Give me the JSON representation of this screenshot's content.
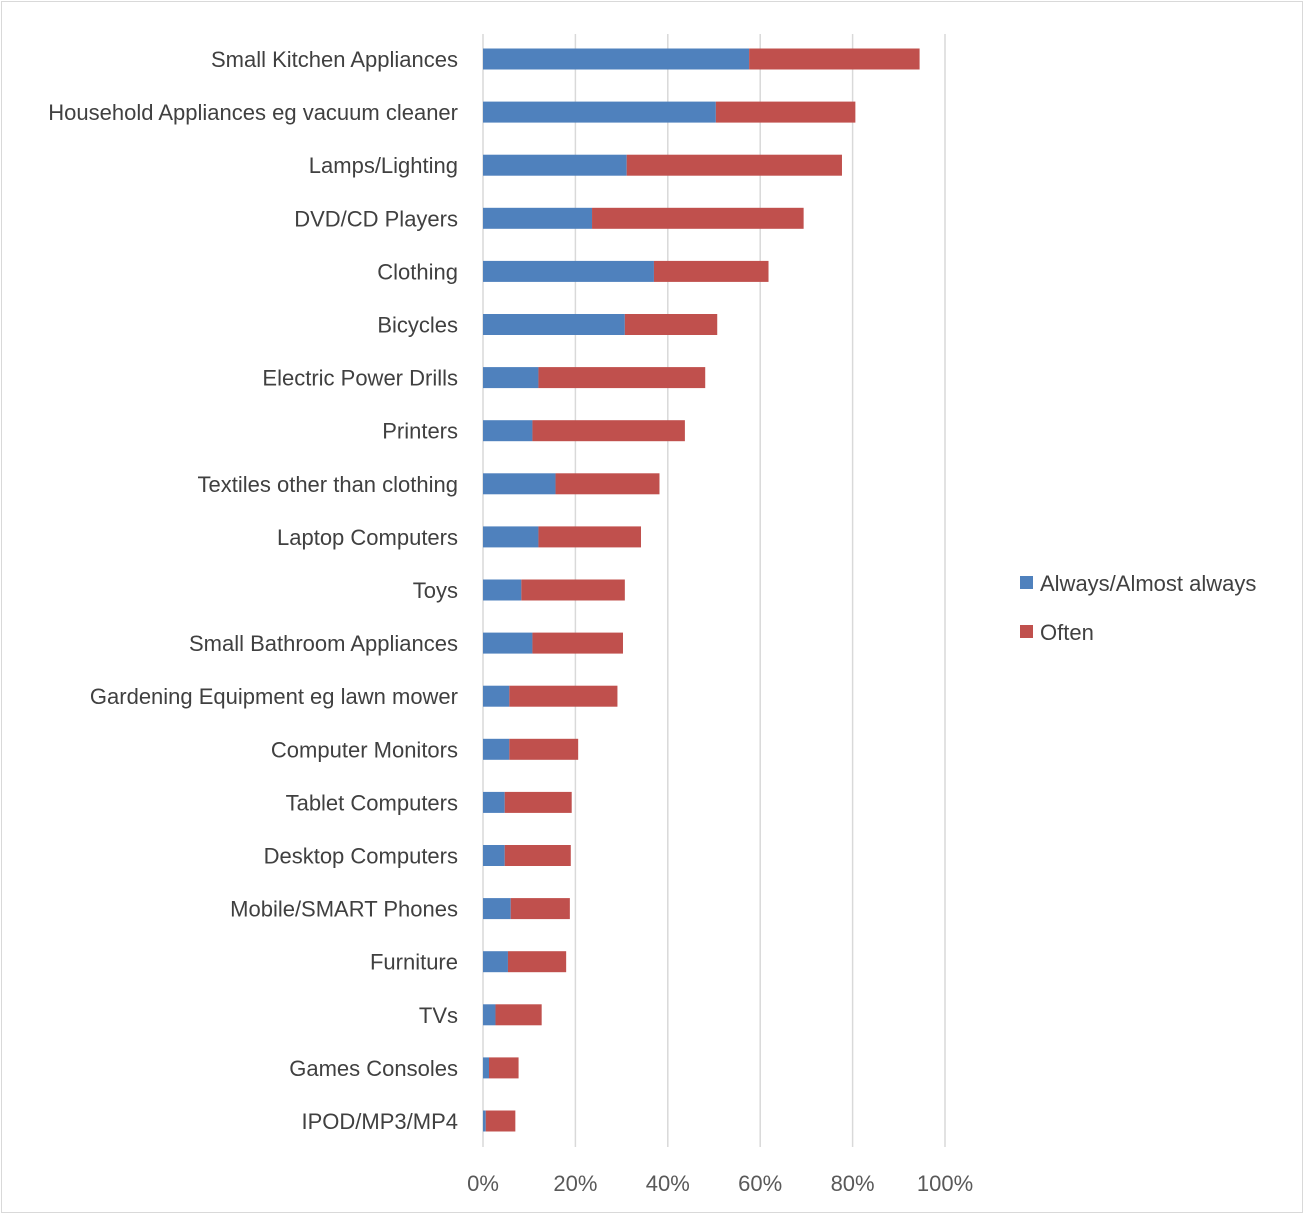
{
  "chart_data": {
    "type": "bar",
    "orientation": "horizontal",
    "stacked": true,
    "categories": [
      "Small Kitchen Appliances",
      "Household Appliances eg vacuum cleaner",
      "Lamps/Lighting",
      "DVD/CD Players",
      "Clothing",
      "Bicycles",
      "Electric Power Drills",
      "Printers",
      "Textiles other than clothing",
      "Laptop Computers",
      "Toys",
      "Small Bathroom Appliances",
      "Gardening Equipment eg lawn mower",
      "Computer Monitors",
      "Tablet Computers",
      "Desktop Computers",
      "Mobile/SMART Phones",
      "Furniture",
      "TVs",
      "Games Consoles",
      "IPOD/MP3/MP4"
    ],
    "series": [
      {
        "name": "Always/Almost always",
        "color": "#4f81bd",
        "values": [
          0.576,
          0.504,
          0.311,
          0.236,
          0.37,
          0.307,
          0.12,
          0.107,
          0.157,
          0.12,
          0.083,
          0.107,
          0.057,
          0.057,
          0.047,
          0.047,
          0.06,
          0.054,
          0.027,
          0.013,
          0.006
        ]
      },
      {
        "name": "Often",
        "color": "#c0504d",
        "values": [
          0.369,
          0.302,
          0.466,
          0.458,
          0.248,
          0.2,
          0.361,
          0.33,
          0.225,
          0.222,
          0.224,
          0.196,
          0.234,
          0.149,
          0.145,
          0.143,
          0.128,
          0.126,
          0.1,
          0.064,
          0.064
        ]
      }
    ],
    "xlim": [
      0,
      1
    ],
    "xticks": [
      "0%",
      "20%",
      "40%",
      "60%",
      "80%",
      "100%"
    ],
    "xlabel": "",
    "ylabel": "",
    "title": "",
    "grid": "vertical",
    "legend_position": "right"
  }
}
